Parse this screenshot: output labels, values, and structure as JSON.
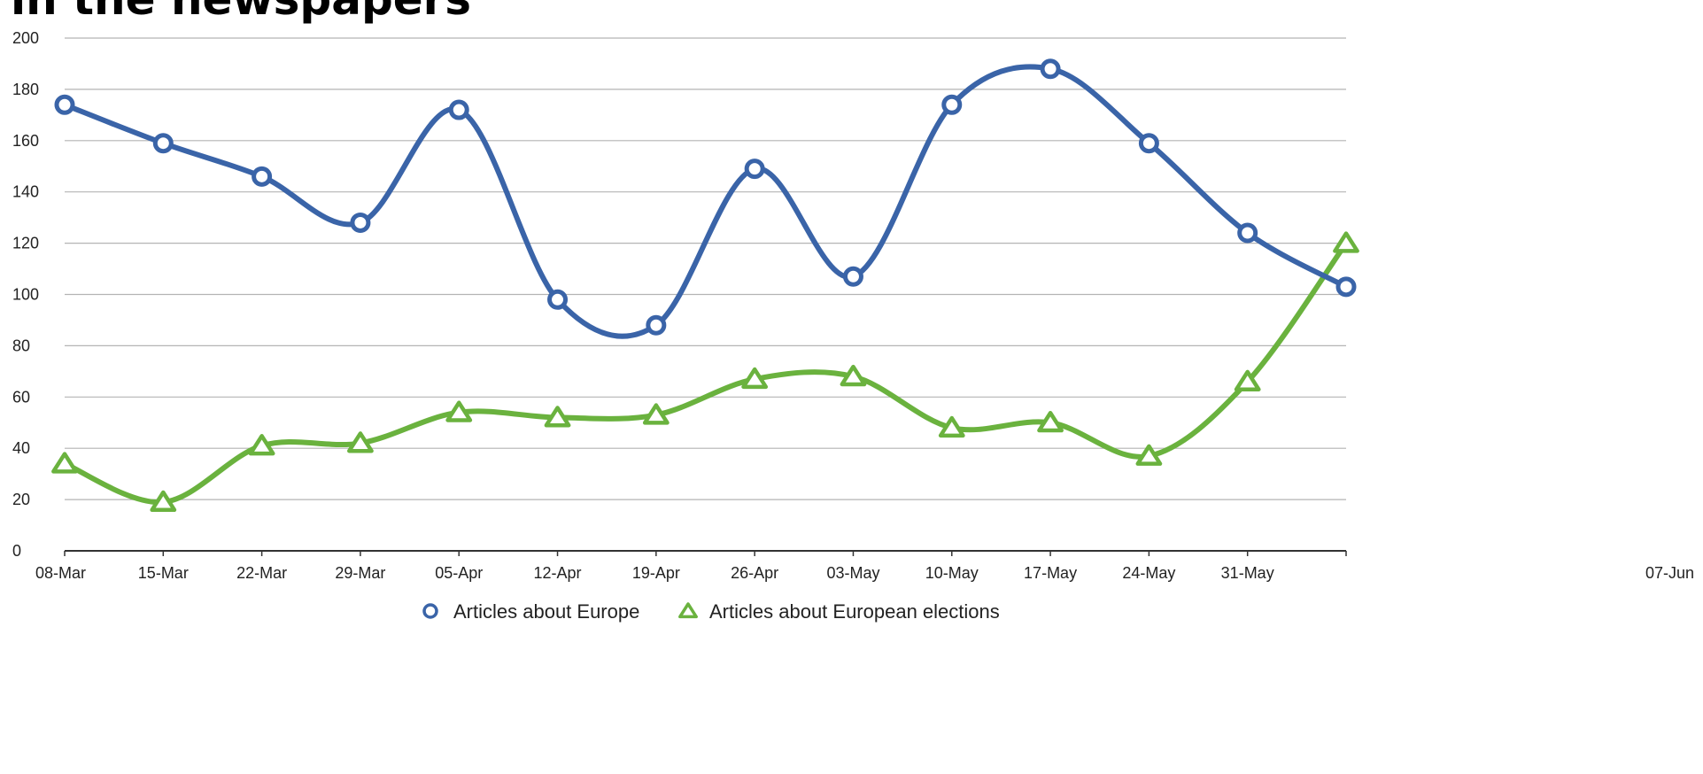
{
  "chart_data": {
    "type": "line",
    "title": "in the newspapers",
    "xlabel": "",
    "ylabel": "",
    "categories": [
      "08-Mar",
      "15-Mar",
      "22-Mar",
      "29-Mar",
      "05-Apr",
      "12-Apr",
      "19-Apr",
      "26-Apr",
      "03-May",
      "10-May",
      "17-May",
      "24-May",
      "31-May",
      "07-Jun"
    ],
    "ylim": [
      0,
      200
    ],
    "yticks": [
      0,
      20,
      40,
      60,
      80,
      100,
      120,
      140,
      160,
      180,
      200
    ],
    "grid": true,
    "legend_position": "bottom",
    "series": [
      {
        "name": "Articles about Europe",
        "marker": "circle",
        "color": "#3a64a8",
        "values": [
          174,
          159,
          146,
          128,
          172,
          98,
          88,
          149,
          107,
          174,
          188,
          159,
          124,
          103
        ]
      },
      {
        "name": "Articles about European elections",
        "marker": "triangle",
        "color": "#6ab23e",
        "values": [
          34,
          19,
          41,
          42,
          54,
          52,
          53,
          67,
          68,
          48,
          50,
          37,
          66,
          120
        ]
      }
    ]
  }
}
